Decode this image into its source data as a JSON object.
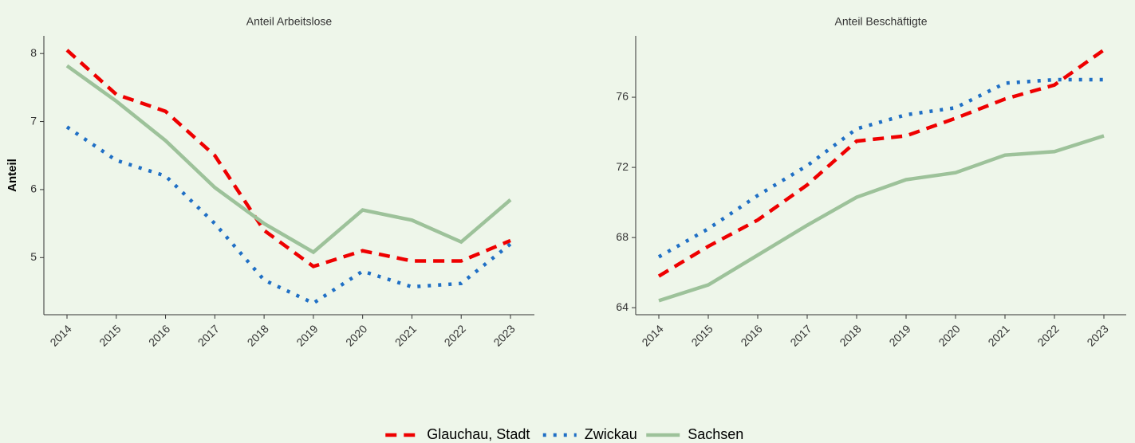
{
  "chart_data": [
    {
      "type": "line",
      "title": "Anteil Arbeitslose",
      "y_label": "Anteil",
      "categories": [
        "2014",
        "2015",
        "2016",
        "2017",
        "2018",
        "2019",
        "2020",
        "2021",
        "2022",
        "2023"
      ],
      "ylim": [
        4.16,
        8.26
      ],
      "yticks": [
        5,
        6,
        7,
        8
      ],
      "series": [
        {
          "name": "Glauchau, Stadt",
          "color": "#ee0000",
          "dash": "dashed",
          "values": [
            8.05,
            7.4,
            7.15,
            6.5,
            5.4,
            4.87,
            5.1,
            4.95,
            4.95,
            5.25
          ]
        },
        {
          "name": "Zwickau",
          "color": "#1f6fc5",
          "dash": "dotted",
          "values": [
            6.92,
            6.43,
            6.2,
            5.5,
            4.67,
            4.33,
            4.8,
            4.57,
            4.62,
            5.2
          ]
        },
        {
          "name": "Sachsen",
          "color": "#9dc29a",
          "dash": "solid",
          "values": [
            7.82,
            7.3,
            6.72,
            6.03,
            5.5,
            5.08,
            5.7,
            5.55,
            5.23,
            5.85
          ]
        }
      ]
    },
    {
      "type": "line",
      "title": "Anteil Beschäftigte",
      "categories": [
        "2014",
        "2015",
        "2016",
        "2017",
        "2018",
        "2019",
        "2020",
        "2021",
        "2022",
        "2023"
      ],
      "ylim": [
        63.6,
        79.5
      ],
      "yticks": [
        64,
        68,
        72,
        76
      ],
      "series": [
        {
          "color": "#ee0000",
          "dash": "dashed",
          "values": [
            65.8,
            67.5,
            69,
            71,
            73.5,
            73.8,
            74.8,
            75.9,
            76.7,
            78.7
          ]
        },
        {
          "color": "#1f6fc5",
          "dash": "dotted",
          "values": [
            66.9,
            68.5,
            70.4,
            72.1,
            74.2,
            75,
            75.4,
            76.8,
            77,
            77
          ]
        },
        {
          "color": "#9dc29a",
          "dash": "solid",
          "values": [
            64.4,
            65.3,
            67,
            68.7,
            70.3,
            71.3,
            71.7,
            72.7,
            72.9,
            73.8
          ]
        }
      ]
    }
  ]
}
